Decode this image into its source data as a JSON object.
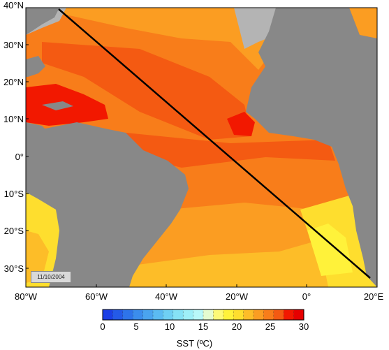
{
  "map": {
    "date_stamp": "11/10/2004",
    "lat_labels": [
      "40°N",
      "30°N",
      "20°N",
      "10°N",
      "0°",
      "10°S",
      "20°S",
      "30°S"
    ],
    "lon_labels": [
      "80°W",
      "60°W",
      "40°W",
      "20°W",
      "0°",
      "20°E"
    ],
    "extent": {
      "lon_min": -80,
      "lon_max": 20,
      "lat_min": -35,
      "lat_max": 40
    },
    "colors": {
      "land": "#888888",
      "shelf": "#b4b4b4",
      "sst_28_30": "#f21800",
      "sst_26_28": "#f45a12",
      "sst_24_26": "#f87d1a",
      "sst_22_24": "#fb9d22",
      "sst_20_22": "#fdbd28",
      "sst_18_20": "#fede2e",
      "sst_16_18": "#fff23a",
      "transect": "#000000"
    }
  },
  "colorbar": {
    "title": "SST (ºC)",
    "min": 0,
    "max": 30,
    "ticks": [
      "0",
      "5",
      "10",
      "15",
      "20",
      "25",
      "30"
    ],
    "colors": [
      "#1b3fe6",
      "#245ae8",
      "#2e74ea",
      "#3b8ded",
      "#4aa4ef",
      "#5bbbf2",
      "#6fd0f4",
      "#86e2f6",
      "#9eeff8",
      "#b8f8f9",
      "#e4fbd0",
      "#fdf977",
      "#fff23a",
      "#fede2e",
      "#fdbd28",
      "#fb9d22",
      "#f87d1a",
      "#f45a12",
      "#f21800",
      "#e60000"
    ]
  }
}
